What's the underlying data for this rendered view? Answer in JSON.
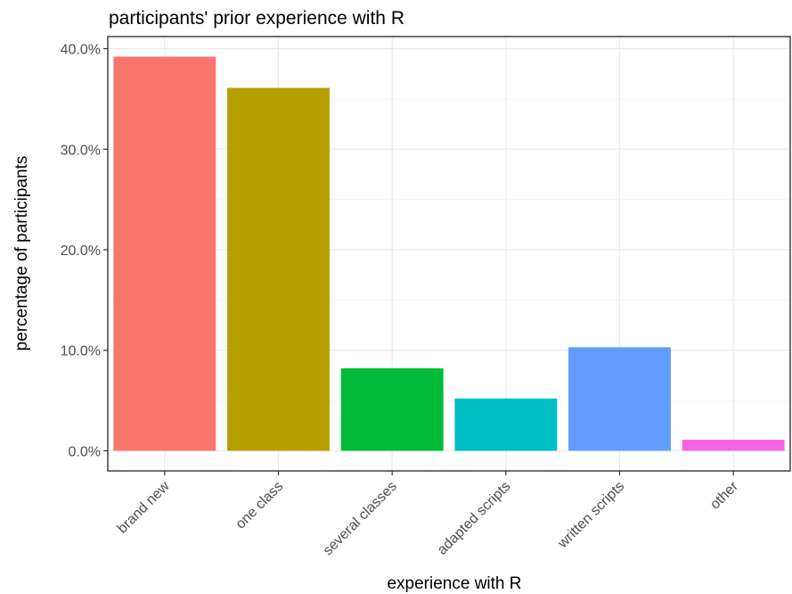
{
  "chart_data": {
    "type": "bar",
    "title": "participants' prior experience with R",
    "xlabel": "experience with R",
    "ylabel": "percentage of participants",
    "categories": [
      "brand new",
      "one class",
      "several classes",
      "adapted scripts",
      "written scripts",
      "other"
    ],
    "values": [
      39.2,
      36.1,
      8.2,
      5.2,
      10.3,
      1.1
    ],
    "colors": [
      "#F8766D",
      "#B79F00",
      "#00BA38",
      "#00BFC4",
      "#619CFF",
      "#F564E3"
    ],
    "yticks": [
      0,
      10,
      20,
      30,
      40
    ],
    "ytick_labels": [
      "0.0%",
      "10.0%",
      "20.0%",
      "30.0%",
      "40.0%"
    ],
    "ylim": [
      -2.0,
      41.2
    ],
    "grid": true,
    "legend": "none"
  }
}
